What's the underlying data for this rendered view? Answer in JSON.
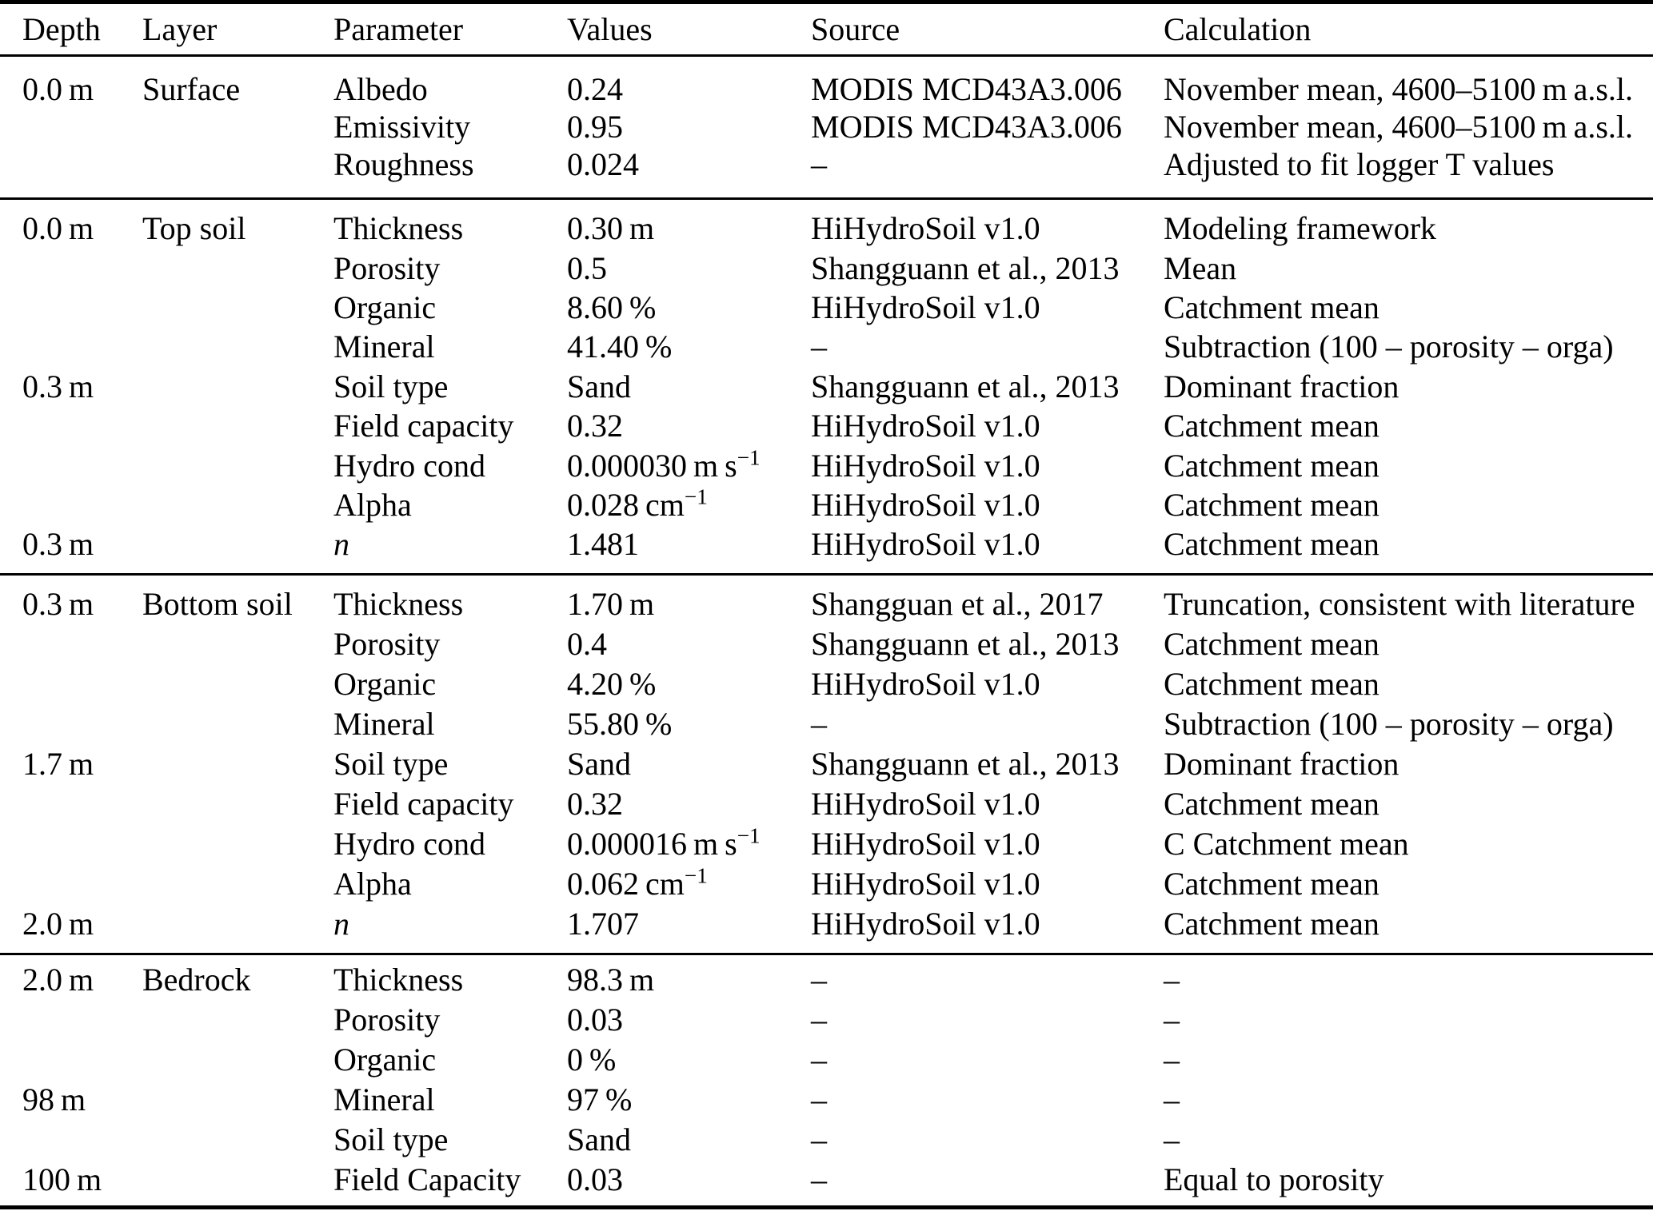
{
  "colors": {
    "background": "#ffffff",
    "text": "#000000",
    "rule": "#000000"
  },
  "table": {
    "columns": [
      "Depth",
      "Layer",
      "Parameter",
      "Values",
      "Source",
      "Calculation"
    ],
    "sections": [
      {
        "id": "surface",
        "rows": [
          [
            "0.0 m",
            "Surface",
            "Albedo",
            "0.24",
            "MODIS MCD43A3.006",
            "November mean, 4600–5100 m a.s.l."
          ],
          [
            "",
            "",
            "Emissivity",
            "0.95",
            "MODIS MCD43A3.006",
            "November mean, 4600–5100 m a.s.l."
          ],
          [
            "",
            "",
            "Roughness",
            "0.024",
            "–",
            "Adjusted to fit logger T values"
          ]
        ]
      },
      {
        "id": "top-soil",
        "rows": [
          [
            "0.0 m",
            "Top soil",
            "Thickness",
            "0.30 m",
            "HiHydroSoil v1.0",
            "Modeling framework"
          ],
          [
            "",
            "",
            "Porosity",
            "0.5",
            "Shangguann et al., 2013",
            "Mean"
          ],
          [
            "",
            "",
            "Organic",
            "8.60 %",
            "HiHydroSoil v1.0",
            "Catchment mean"
          ],
          [
            "",
            "",
            "Mineral",
            "41.40 %",
            "–",
            "Subtraction (100 – porosity – orga)"
          ],
          [
            "0.3 m",
            "",
            "Soil type",
            "Sand",
            "Shangguann et al., 2013",
            "Dominant fraction"
          ],
          [
            "",
            "",
            "Field capacity",
            "0.32",
            "HiHydroSoil v1.0",
            "Catchment mean"
          ],
          [
            "",
            "",
            "Hydro cond",
            "0.000030 m s^{−1}",
            "HiHydroSoil v1.0",
            "Catchment mean"
          ],
          [
            "",
            "",
            "Alpha",
            "0.028 cm^{−1}",
            "HiHydroSoil v1.0",
            "Catchment mean"
          ],
          [
            "0.3 m",
            "",
            "*n*",
            "1.481",
            "HiHydroSoil v1.0",
            "Catchment mean"
          ]
        ]
      },
      {
        "id": "bottom-soil",
        "rows": [
          [
            "0.3 m",
            "Bottom soil",
            "Thickness",
            "1.70 m",
            "Shangguan et al., 2017",
            "Truncation, consistent with literature"
          ],
          [
            "",
            "",
            "Porosity",
            "0.4",
            "Shangguann et al., 2013",
            "Catchment mean"
          ],
          [
            "",
            "",
            "Organic",
            "4.20 %",
            "HiHydroSoil v1.0",
            "Catchment mean"
          ],
          [
            "",
            "",
            "Mineral",
            "55.80 %",
            "–",
            "Subtraction (100 – porosity – orga)"
          ],
          [
            "1.7 m",
            "",
            "Soil type",
            "Sand",
            "Shangguann et al., 2013",
            "Dominant fraction"
          ],
          [
            "",
            "",
            "Field capacity",
            "0.32",
            "HiHydroSoil v1.0",
            "Catchment mean"
          ],
          [
            "",
            "",
            "Hydro cond",
            "0.000016 m s^{−1}",
            "HiHydroSoil v1.0",
            "C Catchment mean"
          ],
          [
            "",
            "",
            "Alpha",
            "0.062 cm^{−1}",
            "HiHydroSoil v1.0",
            "Catchment mean"
          ],
          [
            "2.0 m",
            "",
            "*n*",
            "1.707",
            "HiHydroSoil v1.0",
            "Catchment mean"
          ]
        ]
      },
      {
        "id": "bedrock",
        "rows": [
          [
            "2.0 m",
            "Bedrock",
            "Thickness",
            "98.3 m",
            "–",
            "–"
          ],
          [
            "",
            "",
            "Porosity",
            "0.03",
            "–",
            "–"
          ],
          [
            "",
            "",
            "Organic",
            "0 %",
            "–",
            "–"
          ],
          [
            "98 m",
            "",
            "Mineral",
            "97 %",
            "–",
            "–"
          ],
          [
            "",
            "",
            "Soil type",
            "Sand",
            "–",
            "–"
          ],
          [
            "100 m",
            "",
            "Field Capacity",
            "0.03",
            "–",
            "Equal to porosity"
          ]
        ]
      }
    ]
  }
}
